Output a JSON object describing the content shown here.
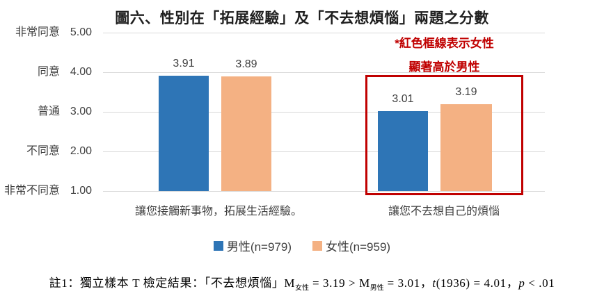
{
  "title": "圖六、性別在「拓展經驗」及「不去想煩惱」兩題之分數",
  "chart_data": {
    "type": "bar",
    "categories": [
      "讓您接觸新事物，拓展生活經驗。",
      "讓您不去想自己的煩惱"
    ],
    "series": [
      {
        "name": "男性(n=979)",
        "color": "#2e75b6",
        "values": [
          3.91,
          3.01
        ]
      },
      {
        "name": "女性(n=959)",
        "color": "#f4b183",
        "values": [
          3.89,
          3.19
        ]
      }
    ],
    "ylim": [
      1.0,
      5.0
    ],
    "y_ticks": [
      {
        "label": "非常同意",
        "value": "5.00"
      },
      {
        "label": "同意",
        "value": "4.00"
      },
      {
        "label": "普通",
        "value": "3.00"
      },
      {
        "label": "不同意",
        "value": "2.00"
      },
      {
        "label": "非常不同意",
        "value": "1.00"
      }
    ],
    "grid": true,
    "legend_position": "bottom",
    "annotation": {
      "line1": "*紅色框線表示女性",
      "line2": "顯著高於男性",
      "color": "#c00000",
      "highlighted_category": "讓您不去想自己的煩惱"
    }
  },
  "note": {
    "part1": "註1：獨立樣本 T 檢定結果：「不去想煩惱」M",
    "sub1": "女性",
    "part2": " = 3.19 > M",
    "sub2": "男性",
    "part3": " = 3.01，",
    "t": "t",
    "part4": "(1936) = 4.01，",
    "p": "p",
    "part5": " < .01"
  },
  "colors": {
    "male": "#2e75b6",
    "female": "#f4b183",
    "highlight": "#c00000",
    "gridline": "#d9d9d9"
  }
}
